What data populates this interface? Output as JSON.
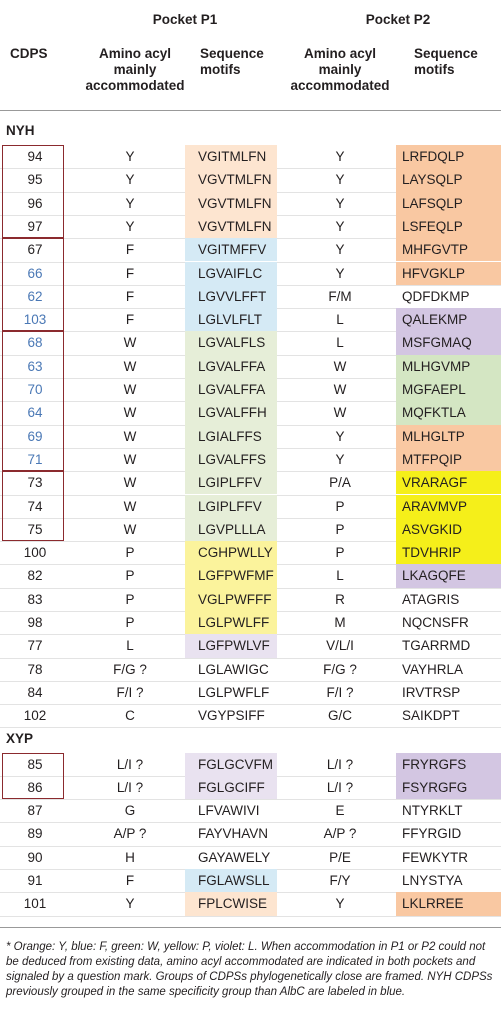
{
  "header": {
    "pocket_p1": "Pocket P1",
    "pocket_p2": "Pocket P2",
    "cdps": "CDPS",
    "p1_aa": "Amino acyl mainly accommodated",
    "p1_motifs": "Sequence motifs",
    "p2_aa": "Amino acyl mainly accommodated",
    "p2_motifs": "Sequence motifs"
  },
  "table": {
    "sections": [
      {
        "label": "NYH",
        "rows": [
          {
            "cdps": "94",
            "p1_aa": "Y",
            "p1_motif": "VGITMLFN",
            "p1_bg": "#fde5d0",
            "p2_aa": "Y",
            "p2_motif": "LRFDQLP",
            "p2_bg": "#f9c8a2"
          },
          {
            "cdps": "95",
            "p1_aa": "Y",
            "p1_motif": "VGVTMLFN",
            "p1_bg": "#fde5d0",
            "p2_aa": "Y",
            "p2_motif": "LAYSQLP",
            "p2_bg": "#f9c8a2"
          },
          {
            "cdps": "96",
            "p1_aa": "Y",
            "p1_motif": "VGVTMLFN",
            "p1_bg": "#fde5d0",
            "p2_aa": "Y",
            "p2_motif": "LAFSQLP",
            "p2_bg": "#f9c8a2"
          },
          {
            "cdps": "97",
            "p1_aa": "Y",
            "p1_motif": "VGVTMLFN",
            "p1_bg": "#fde5d0",
            "p2_aa": "Y",
            "p2_motif": "LSFEQLP",
            "p2_bg": "#f9c8a2"
          },
          {
            "cdps": "67",
            "p1_aa": "F",
            "p1_motif": "VGITMFFV",
            "p1_bg": "#d5eaf5",
            "p2_aa": "Y",
            "p2_motif": "MHFGVTP",
            "p2_bg": "#f9c8a2"
          },
          {
            "cdps": "66",
            "cdps_color": "#4a78b5",
            "p1_aa": "F",
            "p1_motif": "LGVAIFLC",
            "p1_bg": "#d5eaf5",
            "p2_aa": "Y",
            "p2_motif": "HFVGKLP",
            "p2_bg": "#f9c8a2"
          },
          {
            "cdps": "62",
            "cdps_color": "#4a78b5",
            "p1_aa": "F",
            "p1_motif": "LGVVLFFT",
            "p1_bg": "#d5eaf5",
            "p2_aa": "F/M",
            "p2_motif": "QDFDKMP"
          },
          {
            "cdps": "103",
            "cdps_color": "#4a78b5",
            "p1_aa": "F",
            "p1_motif": "LGLVLFLT",
            "p1_bg": "#d5eaf5",
            "p2_aa": "L",
            "p2_motif": "QALEKMP",
            "p2_bg": "#d3c6e2"
          },
          {
            "cdps": "68",
            "cdps_color": "#4a78b5",
            "p1_aa": "W",
            "p1_motif": "LGVALFLS",
            "p1_bg": "#e6eed8",
            "p2_aa": "L",
            "p2_motif": "MSFGMAQ",
            "p2_bg": "#d3c6e2"
          },
          {
            "cdps": "63",
            "cdps_color": "#4a78b5",
            "p1_aa": "W",
            "p1_motif": "LGVALFFA",
            "p1_bg": "#e6eed8",
            "p2_aa": "W",
            "p2_motif": "MLHGVMP",
            "p2_bg": "#d4e6c3"
          },
          {
            "cdps": "70",
            "cdps_color": "#4a78b5",
            "p1_aa": "W",
            "p1_motif": "LGVALFFA",
            "p1_bg": "#e6eed8",
            "p2_aa": "W",
            "p2_motif": "MGFAEPL",
            "p2_bg": "#d4e6c3"
          },
          {
            "cdps": "64",
            "cdps_color": "#4a78b5",
            "p1_aa": "W",
            "p1_motif": "LGVALFFH",
            "p1_bg": "#e6eed8",
            "p2_aa": "W",
            "p2_motif": "MQFKTLA",
            "p2_bg": "#d4e6c3"
          },
          {
            "cdps": "69",
            "cdps_color": "#4a78b5",
            "p1_aa": "W",
            "p1_motif": "LGIALFFS",
            "p1_bg": "#e6eed8",
            "p2_aa": "Y",
            "p2_motif": "MLHGLTP",
            "p2_bg": "#f9c8a2"
          },
          {
            "cdps": "71",
            "cdps_color": "#4a78b5",
            "p1_aa": "W",
            "p1_motif": "LGVALFFS",
            "p1_bg": "#e6eed8",
            "p2_aa": "Y",
            "p2_motif": "MTFPQIP",
            "p2_bg": "#f9c8a2"
          },
          {
            "cdps": "73",
            "p1_aa": "W",
            "p1_motif": "LGIPLFFV",
            "p1_bg": "#e6eed8",
            "p2_aa": "P/A",
            "p2_motif": "VRARAGF",
            "p2_bg": "#f5ef1a"
          },
          {
            "cdps": "74",
            "p1_aa": "W",
            "p1_motif": "LGIPLFFV",
            "p1_bg": "#e6eed8",
            "p2_aa": "P",
            "p2_motif": "ARAVMVP",
            "p2_bg": "#f5ef1a"
          },
          {
            "cdps": "75",
            "p1_aa": "W",
            "p1_motif": "LGVPLLLA",
            "p1_bg": "#e6eed8",
            "p2_aa": "P",
            "p2_motif": "ASVGKID",
            "p2_bg": "#f5ef1a"
          },
          {
            "cdps": "100",
            "p1_aa": "P",
            "p1_motif": "CGHPWLLY",
            "p1_bg": "#fbf39c",
            "p2_aa": "P",
            "p2_motif": "TDVHRIP",
            "p2_bg": "#f5ef1a"
          },
          {
            "cdps": "82",
            "p1_aa": "P",
            "p1_motif": "LGFPWFMF",
            "p1_bg": "#fbf39c",
            "p2_aa": "L",
            "p2_motif": "LKAGQFE",
            "p2_bg": "#d3c6e2"
          },
          {
            "cdps": "83",
            "p1_aa": "P",
            "p1_motif": "VGLPWFFF",
            "p1_bg": "#fbf39c",
            "p2_aa": "R",
            "p2_motif": "ATAGRIS"
          },
          {
            "cdps": "98",
            "p1_aa": "P",
            "p1_motif": "LGLPWLFF",
            "p1_bg": "#fbf39c",
            "p2_aa": "M",
            "p2_motif": "NQCNSFR"
          },
          {
            "cdps": "77",
            "p1_aa": "L",
            "p1_motif": "LGFPWLVF",
            "p1_bg": "#e9e2f0",
            "p2_aa": "V/L/I",
            "p2_motif": "TGARRMD"
          },
          {
            "cdps": "78",
            "p1_aa": "F/G ?",
            "p1_motif": "LGLAWIGC",
            "p2_aa": "F/G ?",
            "p2_motif": "VAYHRLA"
          },
          {
            "cdps": "84",
            "p1_aa": "F/I ?",
            "p1_motif": "LGLPWFLF",
            "p2_aa": "F/I ?",
            "p2_motif": "IRVTRSP"
          },
          {
            "cdps": "102",
            "p1_aa": "C",
            "p1_motif": "VGYPSIFF",
            "p2_aa": "G/C",
            "p2_motif": "SAIKDPT"
          }
        ]
      },
      {
        "label": "XYP",
        "rows": [
          {
            "cdps": "85",
            "p1_aa": "L/I ?",
            "p1_motif": "FGLGCVFM",
            "p1_bg": "#e9e2f0",
            "p2_aa": "L/I ?",
            "p2_motif": "FRYRGFS",
            "p2_bg": "#d3c6e2"
          },
          {
            "cdps": "86",
            "p1_aa": "L/I ?",
            "p1_motif": "FGLGCIFF",
            "p1_bg": "#e9e2f0",
            "p2_aa": "L/I ?",
            "p2_motif": "FSYRGFG",
            "p2_bg": "#d3c6e2"
          },
          {
            "cdps": "87",
            "p1_aa": "G",
            "p1_motif": "LFVAWIVI",
            "p2_aa": "E",
            "p2_motif": "NTYRKLT"
          },
          {
            "cdps": "89",
            "p1_aa": "A/P ?",
            "p1_motif": "FAYVHAVN",
            "p2_aa": "A/P ?",
            "p2_motif": "FFYRGID"
          },
          {
            "cdps": "90",
            "p1_aa": "H",
            "p1_motif": "GAYAWELY",
            "p2_aa": "P/E",
            "p2_motif": "FEWKYTR"
          },
          {
            "cdps": "91",
            "p1_aa": "F",
            "p1_motif": "FGLAWSLL",
            "p1_bg": "#d5eaf5",
            "p2_aa": "F/Y",
            "p2_motif": "LNYSTYA"
          },
          {
            "cdps": "101",
            "p1_aa": "Y",
            "p1_motif": "FPLCWISE",
            "p1_bg": "#fde5d0",
            "p2_aa": "Y",
            "p2_motif": "LKLRREE",
            "p2_bg": "#f9c8a2"
          }
        ]
      }
    ]
  },
  "footnote": "* Orange: Y, blue: F, green: W, yellow: P, violet: L. When accommodation in P1 or P2 could not be deduced from existing data, amino acyl accommodated are indicated in both pockets and signaled by a question mark. Groups of CDPSs phylogenetically close are framed. NYH CDPSs previously grouped in the same specificity group than AlbC are labeled in blue."
}
